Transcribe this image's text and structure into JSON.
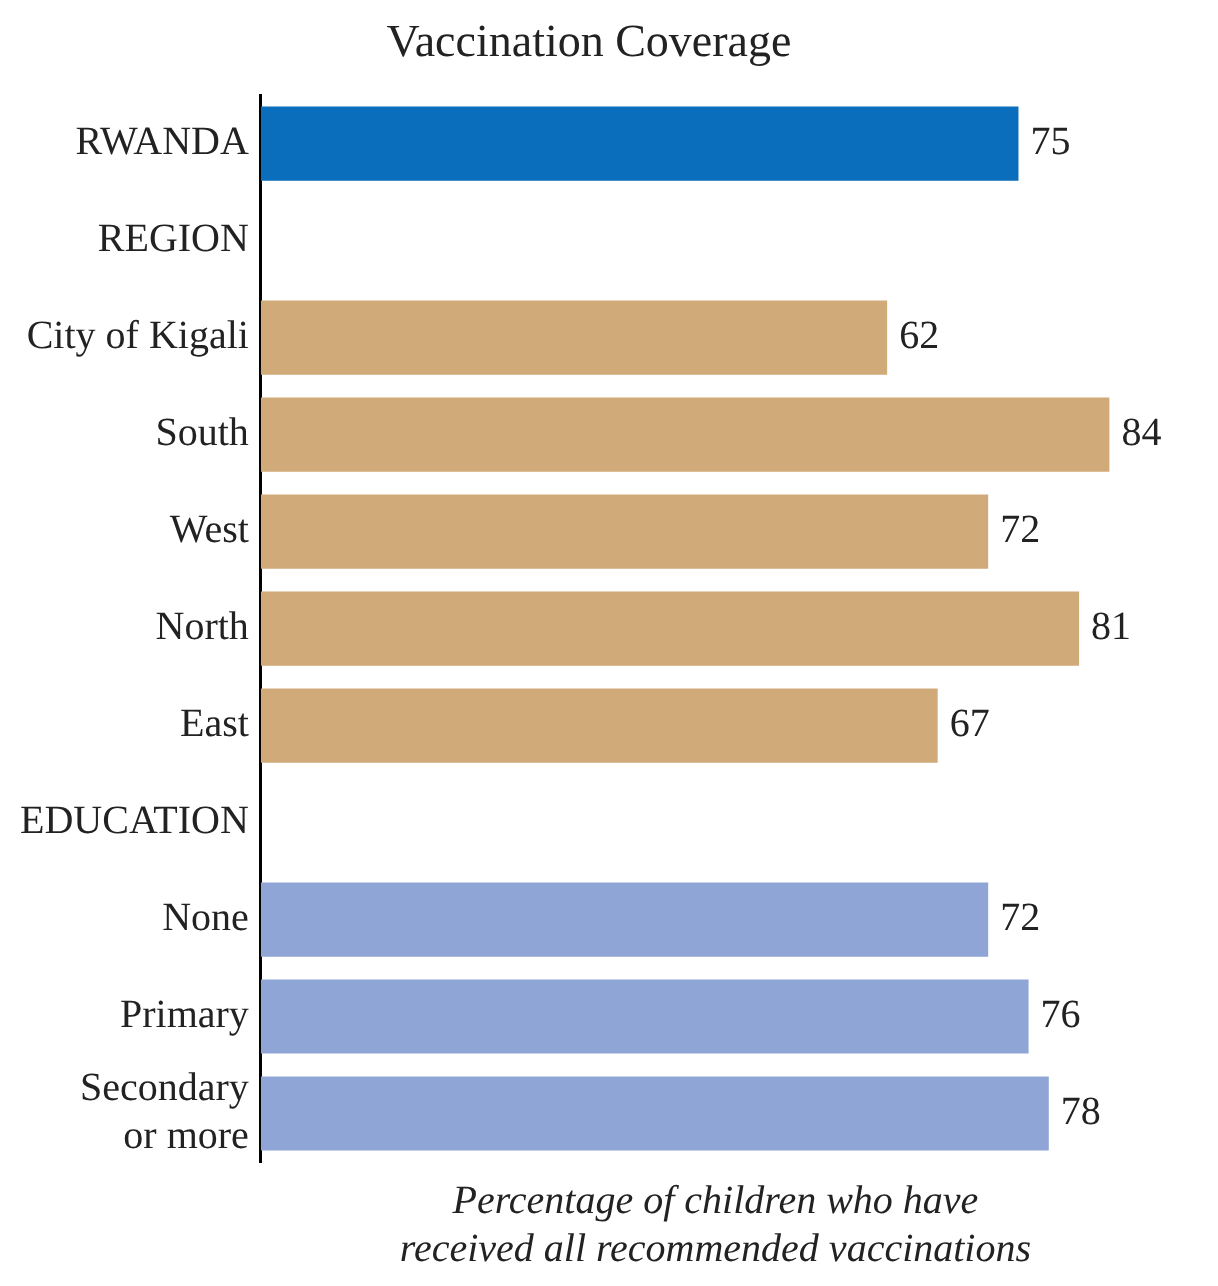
{
  "chart_data": {
    "type": "bar",
    "orientation": "horizontal",
    "title": "Vaccination Coverage",
    "xlabel": "Percentage of children who have received all recommended vaccinations",
    "categories": [
      "RWANDA",
      "REGION",
      "City of Kigali",
      "South",
      "West",
      "North",
      "East",
      "EDUCATION",
      "None",
      "Primary",
      "Secondary or more"
    ],
    "values": [
      75,
      null,
      62,
      84,
      72,
      81,
      67,
      null,
      72,
      76,
      78
    ],
    "colors": [
      "#0a6ebd",
      null,
      "#d0aa78",
      "#d0aa78",
      "#d0aa78",
      "#d0aa78",
      "#d0aa78",
      null,
      "#8ea5d5",
      "#8ea5d5",
      "#8ea5d5"
    ],
    "data_labels": true
  }
}
